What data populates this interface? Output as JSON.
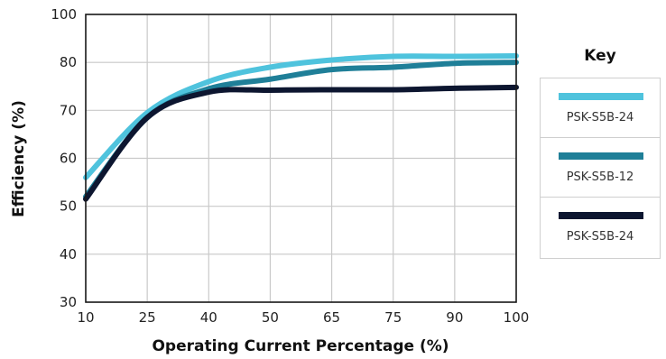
{
  "chart_data": {
    "type": "line",
    "title": "",
    "xlabel": "Operating Current Percentage (%)",
    "ylabel": "Efficiency (%)",
    "x_ticks": [
      "10",
      "25",
      "40",
      "50",
      "65",
      "75",
      "90",
      "100"
    ],
    "y_ticks": [
      "30",
      "40",
      "50",
      "60",
      "70",
      "80",
      "100"
    ],
    "ylim": [
      30,
      100
    ],
    "grid": true,
    "legend_title": "Key",
    "legend_position": "right",
    "series": [
      {
        "name": "PSK-S5B-24",
        "color": "#4fc3dd",
        "points": [
          {
            "x": "10",
            "y": 56
          },
          {
            "x": "25",
            "y": 69.5
          },
          {
            "x": "40",
            "y": 76
          },
          {
            "x": "50",
            "y": 79
          },
          {
            "x": "65",
            "y": 81
          },
          {
            "x": "75",
            "y": 82.5
          },
          {
            "x": "90",
            "y": 82.5
          },
          {
            "x": "100",
            "y": 82.7
          }
        ]
      },
      {
        "name": "PSK-S5B-12",
        "color": "#1f7f98",
        "points": [
          {
            "x": "10",
            "y": 52
          },
          {
            "x": "25",
            "y": 68.5
          },
          {
            "x": "40",
            "y": 74.5
          },
          {
            "x": "50",
            "y": 76.5
          },
          {
            "x": "65",
            "y": 78.5
          },
          {
            "x": "75",
            "y": 79
          },
          {
            "x": "90",
            "y": 79.8
          },
          {
            "x": "100",
            "y": 80
          }
        ]
      },
      {
        "name": "PSK-S5B-24",
        "color": "#0d1630",
        "points": [
          {
            "x": "10",
            "y": 51.5
          },
          {
            "x": "25",
            "y": 68.5
          },
          {
            "x": "40",
            "y": 73.8
          },
          {
            "x": "50",
            "y": 74.2
          },
          {
            "x": "65",
            "y": 74.3
          },
          {
            "x": "75",
            "y": 74.3
          },
          {
            "x": "90",
            "y": 74.6
          },
          {
            "x": "100",
            "y": 74.8
          }
        ]
      }
    ]
  }
}
